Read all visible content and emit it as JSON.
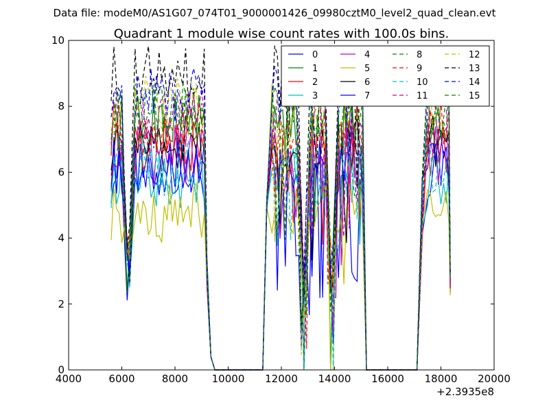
{
  "header": {
    "data_file_label": "Data file: modeM0/AS1G07_074T01_9000001426_09980cztM0_level2_quad_clean.evt"
  },
  "chart_data": {
    "type": "line",
    "title": "Quadrant 1 module wise count rates with 100.0s bins.",
    "xlabel": "",
    "ylabel": "",
    "x_offset_label": "+2.3935e8",
    "xlim": [
      4000,
      20000
    ],
    "ylim": [
      0,
      10
    ],
    "x_ticks": [
      4000,
      6000,
      8000,
      10000,
      12000,
      14000,
      16000,
      18000,
      20000
    ],
    "y_ticks": [
      0,
      2,
      4,
      6,
      8,
      10
    ],
    "grid": false,
    "legend_position": "top-right",
    "legend_columns": 4,
    "series": [
      {
        "name": "0",
        "color": "#0000ff",
        "style": "solid",
        "base": 6.0
      },
      {
        "name": "1",
        "color": "#008000",
        "style": "solid",
        "base": 7.5
      },
      {
        "name": "2",
        "color": "#ff0000",
        "style": "solid",
        "base": 6.8
      },
      {
        "name": "3",
        "color": "#00bfbf",
        "style": "solid",
        "base": 5.8
      },
      {
        "name": "4",
        "color": "#bf00bf",
        "style": "solid",
        "base": 6.5
      },
      {
        "name": "5",
        "color": "#bfbf00",
        "style": "solid",
        "base": 4.8
      },
      {
        "name": "6",
        "color": "#000000",
        "style": "solid",
        "base": 6.9
      },
      {
        "name": "7",
        "color": "#0000ff",
        "style": "solid",
        "base": 6.3
      },
      {
        "name": "8",
        "color": "#008000",
        "style": "dashed",
        "base": 7.8
      },
      {
        "name": "9",
        "color": "#ff0000",
        "style": "dashed",
        "base": 7.3
      },
      {
        "name": "10",
        "color": "#00bfbf",
        "style": "dashed",
        "base": 6.2
      },
      {
        "name": "11",
        "color": "#bf00bf",
        "style": "dashed",
        "base": 7.6
      },
      {
        "name": "12",
        "color": "#bfbf00",
        "style": "dashed",
        "base": 8.0
      },
      {
        "name": "13",
        "color": "#000000",
        "style": "dashed",
        "base": 8.9
      },
      {
        "name": "14",
        "color": "#0000ff",
        "style": "dashed",
        "base": 8.4
      },
      {
        "name": "15",
        "color": "#008000",
        "style": "dashed",
        "base": 7.9
      }
    ],
    "active_segments": [
      [
        5600,
        9100
      ],
      [
        11650,
        15050
      ],
      [
        17500,
        18300
      ]
    ],
    "zero_segment": [
      9500,
      17100
    ]
  }
}
